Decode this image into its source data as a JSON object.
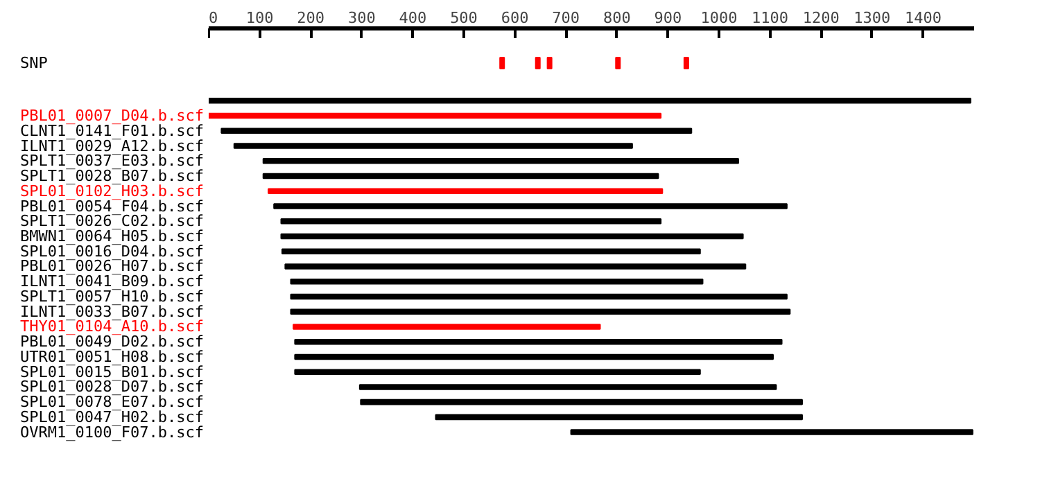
{
  "chart_data": {
    "type": "bar",
    "orientation": "horizontal",
    "categories": [
      "SNP",
      null,
      "PBL01_0007_D04.b.scf",
      "CLNT1_0141_F01.b.scf",
      "ILNT1_0029_A12.b.scf",
      "SPLT1_0037_E03.b.scf",
      "SPLT1_0028_B07.b.scf",
      "SPL01_0102_H03.b.scf",
      "PBL01_0054_F04.b.scf",
      "SPLT1_0026_C02.b.scf",
      "BMWN1_0064_H05.b.scf",
      "SPL01_0016_D04.b.scf",
      "PBL01_0026_H07.b.scf",
      "ILNT1_0041_B09.b.scf",
      "SPLT1_0057_H10.b.scf",
      "ILNT1_0033_B07.b.scf",
      "THY01_0104_A10.b.scf",
      "PBL01_0049_D02.b.scf",
      "UTR01_0051_H08.b.scf",
      "SPL01_0015_B01.b.scf",
      "SPL01_0028_D07.b.scf",
      "SPL01_0078_E07.b.scf",
      "SPL01_0047_H02.b.scf",
      "OVRM1_0100_F07.b.scf"
    ],
    "series": [
      {
        "base": [
          null,
          0,
          0,
          25,
          50,
          107,
          107,
          117,
          128,
          142,
          142,
          144,
          150,
          161,
          161,
          161,
          166,
          169,
          169,
          169,
          296,
          298,
          445,
          710
        ],
        "values": [
          null,
          1493,
          886,
          921,
          780,
          931,
          774,
          772,
          1005,
          744,
          905,
          819,
          902,
          807,
          972,
          978,
          601,
          954,
          937,
          794,
          816,
          865,
          718,
          787
        ],
        "colors": [
          "#000000",
          "#000000",
          "#ff0000",
          "#000000",
          "#000000",
          "#000000",
          "#000000",
          "#ff0000",
          "#000000",
          "#000000",
          "#000000",
          "#000000",
          "#000000",
          "#000000",
          "#000000",
          "#000000",
          "#ff0000",
          "#000000",
          "#000000",
          "#000000",
          "#000000",
          "#000000",
          "#000000",
          "#000000"
        ]
      },
      {
        "type": "scatter",
        "marker": "square",
        "color": "#ff0000",
        "x": [
          "SNP",
          "SNP",
          "SNP",
          "SNP",
          "SNP"
        ],
        "values": [
          575,
          645,
          668,
          802,
          936
        ]
      }
    ],
    "xlim": [
      0,
      1500
    ],
    "xticks": [
      0,
      100,
      200,
      300,
      400,
      500,
      600,
      700,
      800,
      900,
      1000,
      1100,
      1200,
      1300,
      1400
    ],
    "tick_labels": "x",
    "grid": false
  }
}
